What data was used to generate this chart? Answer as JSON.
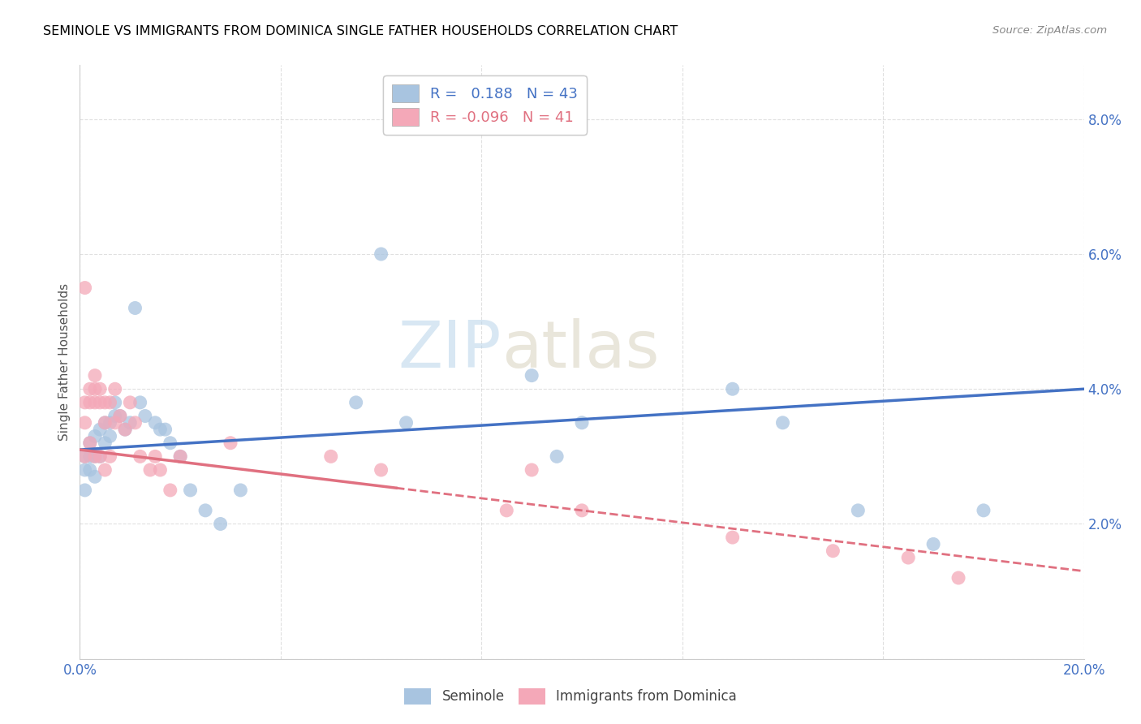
{
  "title": "SEMINOLE VS IMMIGRANTS FROM DOMINICA SINGLE FATHER HOUSEHOLDS CORRELATION CHART",
  "source": "Source: ZipAtlas.com",
  "ylabel": "Single Father Households",
  "xlim": [
    0,
    0.2
  ],
  "ylim": [
    0,
    0.088
  ],
  "xticks": [
    0.0,
    0.04,
    0.08,
    0.12,
    0.16,
    0.2
  ],
  "xtick_labels": [
    "0.0%",
    "",
    "",
    "",
    "",
    "20.0%"
  ],
  "yticks": [
    0.0,
    0.02,
    0.04,
    0.06,
    0.08
  ],
  "ytick_labels": [
    "",
    "2.0%",
    "4.0%",
    "6.0%",
    "8.0%"
  ],
  "seminole_R": 0.188,
  "seminole_N": 43,
  "dominica_R": -0.096,
  "dominica_N": 41,
  "seminole_color": "#a8c4e0",
  "dominica_color": "#f4a8b8",
  "seminole_line_color": "#4472c4",
  "dominica_line_color": "#e07080",
  "watermark_zip": "ZIP",
  "watermark_atlas": "atlas",
  "seminole_x": [
    0.001,
    0.001,
    0.001,
    0.002,
    0.002,
    0.002,
    0.003,
    0.003,
    0.003,
    0.004,
    0.004,
    0.005,
    0.005,
    0.006,
    0.006,
    0.007,
    0.007,
    0.008,
    0.009,
    0.01,
    0.011,
    0.012,
    0.013,
    0.015,
    0.016,
    0.017,
    0.018,
    0.02,
    0.022,
    0.025,
    0.028,
    0.032,
    0.055,
    0.06,
    0.065,
    0.09,
    0.095,
    0.1,
    0.13,
    0.14,
    0.155,
    0.17,
    0.18
  ],
  "seminole_y": [
    0.03,
    0.028,
    0.025,
    0.032,
    0.03,
    0.028,
    0.033,
    0.03,
    0.027,
    0.034,
    0.03,
    0.035,
    0.032,
    0.035,
    0.033,
    0.038,
    0.036,
    0.036,
    0.034,
    0.035,
    0.052,
    0.038,
    0.036,
    0.035,
    0.034,
    0.034,
    0.032,
    0.03,
    0.025,
    0.022,
    0.02,
    0.025,
    0.038,
    0.06,
    0.035,
    0.042,
    0.03,
    0.035,
    0.04,
    0.035,
    0.022,
    0.017,
    0.022
  ],
  "dominica_x": [
    0.001,
    0.001,
    0.001,
    0.001,
    0.002,
    0.002,
    0.002,
    0.003,
    0.003,
    0.003,
    0.003,
    0.004,
    0.004,
    0.004,
    0.005,
    0.005,
    0.005,
    0.006,
    0.006,
    0.007,
    0.007,
    0.008,
    0.009,
    0.01,
    0.011,
    0.012,
    0.014,
    0.015,
    0.016,
    0.018,
    0.02,
    0.03,
    0.05,
    0.06,
    0.085,
    0.09,
    0.1,
    0.13,
    0.15,
    0.165,
    0.175
  ],
  "dominica_y": [
    0.055,
    0.038,
    0.035,
    0.03,
    0.04,
    0.038,
    0.032,
    0.042,
    0.04,
    0.038,
    0.03,
    0.04,
    0.038,
    0.03,
    0.038,
    0.035,
    0.028,
    0.038,
    0.03,
    0.04,
    0.035,
    0.036,
    0.034,
    0.038,
    0.035,
    0.03,
    0.028,
    0.03,
    0.028,
    0.025,
    0.03,
    0.032,
    0.03,
    0.028,
    0.022,
    0.028,
    0.022,
    0.018,
    0.016,
    0.015,
    0.012
  ]
}
